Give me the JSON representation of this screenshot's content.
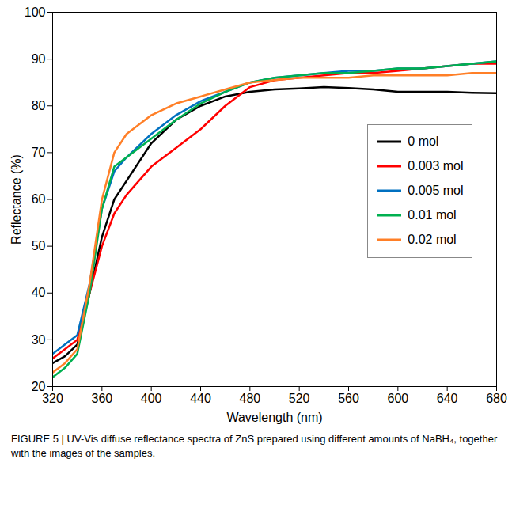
{
  "chart_data": {
    "type": "line",
    "caption": "FIGURE 5 | UV-Vis diffuse reflectance spectra of ZnS prepared using different amounts of NaBH₄, together with the images of the samples.",
    "x_label": "Wavelength (nm)",
    "y_label": "Reflectance (%)",
    "x": [
      320,
      330,
      340,
      350,
      360,
      370,
      380,
      400,
      420,
      440,
      460,
      480,
      500,
      520,
      540,
      560,
      580,
      600,
      620,
      640,
      660,
      680
    ],
    "series": [
      {
        "name": "0 mol",
        "color": "#000000",
        "values": [
          25,
          26.5,
          29,
          40,
          52,
          60,
          64,
          72,
          77,
          80,
          82,
          83,
          83.5,
          83.7,
          84,
          83.8,
          83.5,
          83,
          83,
          83,
          82.8,
          82.7
        ]
      },
      {
        "name": "0.003 mol",
        "color": "#ff0000",
        "values": [
          26,
          28,
          30,
          40,
          50,
          57,
          61,
          67,
          71,
          75,
          80,
          84,
          85.5,
          86,
          86.5,
          87,
          87,
          87.5,
          88,
          88.5,
          89,
          89
        ]
      },
      {
        "name": "0.005 mol",
        "color": "#0070c0",
        "values": [
          27,
          29,
          31,
          42,
          58,
          66,
          69,
          74,
          78,
          81,
          83,
          85,
          86,
          86.5,
          87,
          87.5,
          87.5,
          88,
          88,
          88.5,
          89,
          89.5
        ]
      },
      {
        "name": "0.01 mol",
        "color": "#00b050",
        "values": [
          22,
          24,
          27,
          40,
          58,
          67,
          69,
          73,
          77,
          80.5,
          83,
          85,
          86,
          86.5,
          87,
          87,
          87.5,
          88,
          88,
          88.5,
          89,
          89.5
        ]
      },
      {
        "name": "0.02 mol",
        "color": "#ff7f27",
        "values": [
          23,
          25,
          28,
          42,
          60,
          70,
          74,
          78,
          80.5,
          82,
          83.5,
          85,
          85.5,
          86,
          86,
          86,
          86.5,
          86.5,
          86.5,
          86.5,
          87,
          87
        ]
      }
    ],
    "xlim": [
      320,
      680
    ],
    "xticks": [
      320,
      360,
      400,
      440,
      480,
      520,
      560,
      600,
      640,
      680
    ],
    "ylim": [
      20,
      100
    ],
    "yticks": [
      20,
      30,
      40,
      50,
      60,
      70,
      80,
      90,
      100
    ],
    "grid": false,
    "legend": "right"
  }
}
